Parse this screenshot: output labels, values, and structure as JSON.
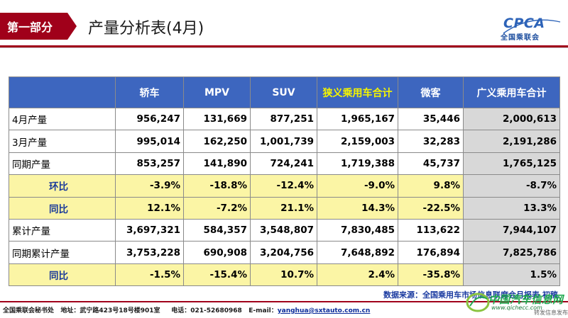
{
  "header": {
    "section_tab": "第一部分",
    "title": "产量分析表(4月)",
    "logo_mark": "CPCA",
    "logo_sub": "全国乘联会",
    "brand_color": "#a0001a"
  },
  "table": {
    "columns": [
      "",
      "轿车",
      "MPV",
      "SUV",
      "狭义乘用车合计",
      "微客",
      "广义乘用车合计"
    ],
    "rows": [
      {
        "label": "4月产量",
        "style": "normal",
        "values": [
          "956,247",
          "131,669",
          "877,251",
          "1,965,167",
          "35,446",
          "2,000,613"
        ]
      },
      {
        "label": "3月产量",
        "style": "normal",
        "values": [
          "995,014",
          "162,250",
          "1,001,739",
          "2,159,003",
          "32,283",
          "2,191,286"
        ]
      },
      {
        "label": "同期产量",
        "style": "normal",
        "values": [
          "853,257",
          "141,890",
          "724,241",
          "1,719,388",
          "45,737",
          "1,765,125"
        ]
      },
      {
        "label": "环比",
        "style": "yellow",
        "values": [
          "-3.9%",
          "-18.8%",
          "-12.4%",
          "-9.0%",
          "9.8%",
          "-8.7%"
        ]
      },
      {
        "label": "同比",
        "style": "yellow",
        "values": [
          "12.1%",
          "-7.2%",
          "21.1%",
          "14.3%",
          "-22.5%",
          "13.3%"
        ]
      },
      {
        "label": "累计产量",
        "style": "normal",
        "values": [
          "3,697,321",
          "584,357",
          "3,548,807",
          "7,830,485",
          "113,622",
          "7,944,107"
        ]
      },
      {
        "label": "同期累计产量",
        "style": "normal",
        "values": [
          "3,753,228",
          "690,908",
          "3,204,756",
          "7,648,892",
          "176,894",
          "7,825,786"
        ]
      },
      {
        "label": "同比",
        "style": "yellow",
        "values": [
          "-1.5%",
          "-15.4%",
          "10.7%",
          "2.4%",
          "-35.8%",
          "1.5%"
        ]
      }
    ]
  },
  "source": "数据来源：全国乘用车市场信息联席会月报表 初稿",
  "footer": {
    "org": "全国乘联会秘书处",
    "address": "地址：武宁路423号18号楼901室",
    "phone": "电话：021-52680968",
    "email_label": "E-mail：",
    "email": "yanghua@sxtauto.com.cn"
  },
  "watermark": {
    "text": "中国汽车信息网",
    "url": "www.qichecc.com",
    "tag": "转发信息发布"
  }
}
